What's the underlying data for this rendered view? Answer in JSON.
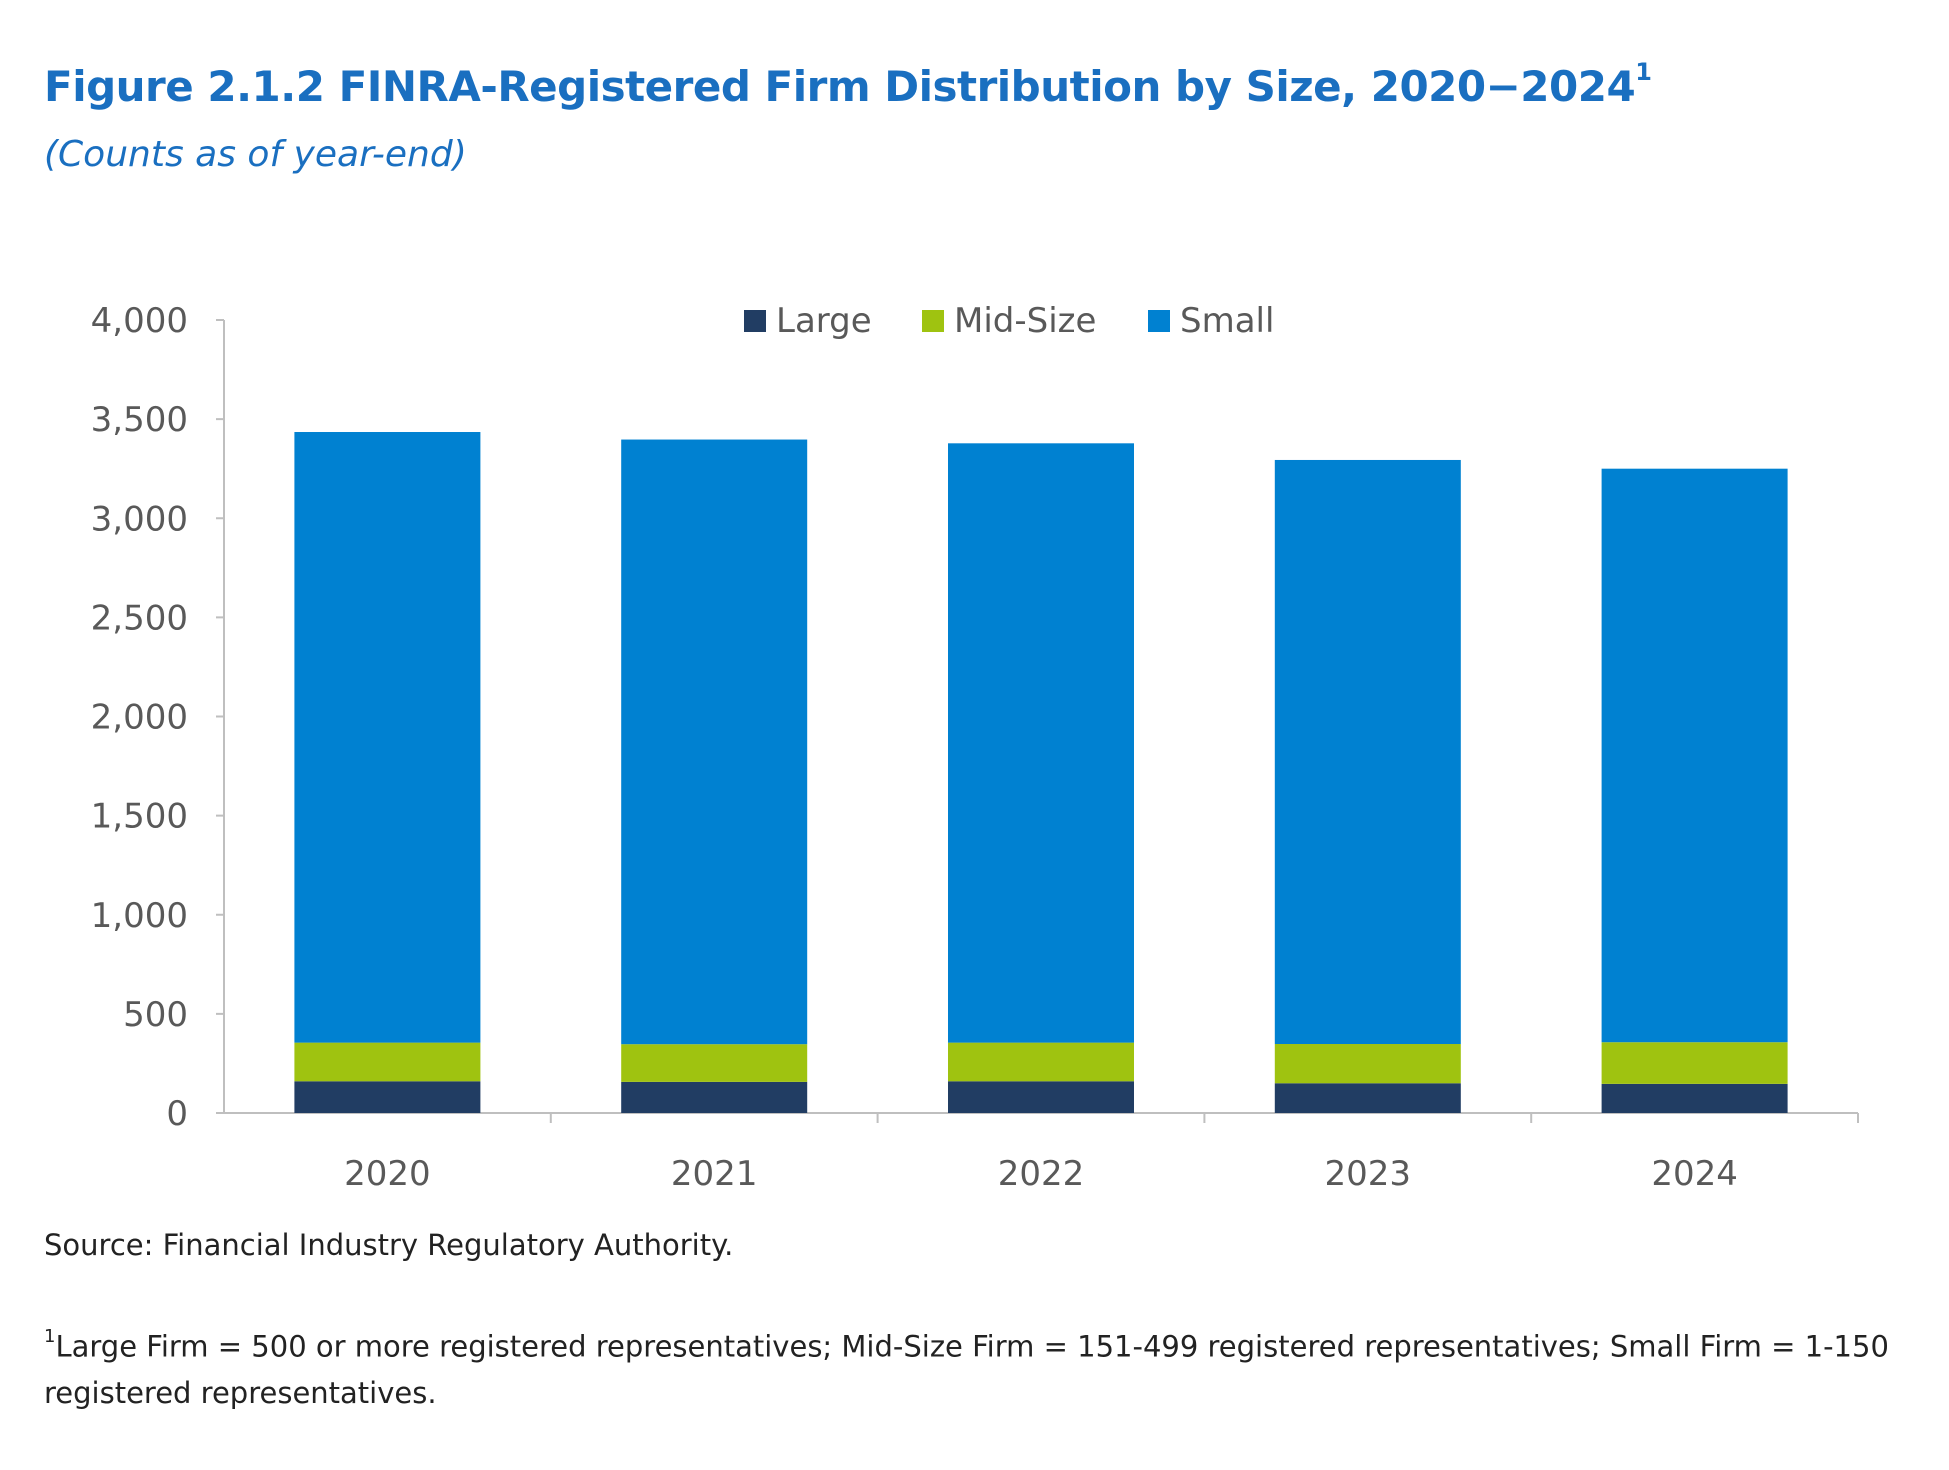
{
  "header": {
    "title": "Figure 2.1.2 FINRA-Registered Firm Distribution by Size, 2020−2024",
    "title_superscript": "1",
    "subtitle": "(Counts as of year-end)"
  },
  "chart_data": {
    "type": "bar",
    "stacked": true,
    "categories": [
      "2020",
      "2021",
      "2022",
      "2023",
      "2024"
    ],
    "series": [
      {
        "name": "Large",
        "color": "#213d63",
        "values": [
          160,
          157,
          160,
          150,
          147
        ]
      },
      {
        "name": "Mid-Size",
        "color": "#9fc310",
        "values": [
          195,
          190,
          195,
          198,
          210
        ]
      },
      {
        "name": "Small",
        "color": "#0081d1",
        "values": [
          3080,
          3050,
          3023,
          2946,
          2893
        ]
      }
    ],
    "ylim": [
      0,
      4000
    ],
    "yticks": [
      "0",
      "500",
      "1,000",
      "1,500",
      "2,000",
      "2,500",
      "3,000",
      "3,500",
      "4,000"
    ],
    "xlabel": "",
    "ylabel": "",
    "legend": "top-center"
  },
  "footer": {
    "source": "Source: Financial Industry Regulatory Authority.",
    "note_marker": "1",
    "note": "Large Firm = 500 or more registered representatives; Mid-Size Firm = 151-499 registered representatives; Small Firm = 1-150 registered representatives."
  }
}
